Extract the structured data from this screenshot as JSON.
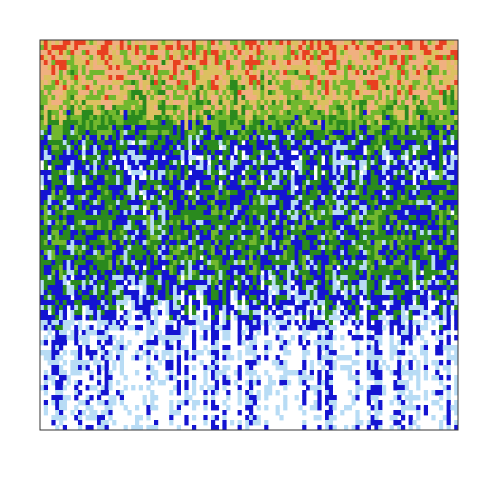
{
  "chart_data": {
    "type": "heatmap",
    "title": "",
    "xlabel": "",
    "ylabel": "",
    "axes_visible": false,
    "colorbar": false,
    "grid": false,
    "colormap": [
      "#ffffff",
      "#b8dcf5",
      "#1414d2",
      "#2a8a1e",
      "#72b82e",
      "#dcc060",
      "#f0b080",
      "#e84020"
    ],
    "value_range": [
      0,
      1
    ],
    "row_order": "top-to-bottom",
    "row_profile": [
      0.74,
      0.7,
      0.66,
      0.6,
      0.52,
      0.38,
      0.24,
      0.18,
      0.22,
      0.25,
      0.28,
      0.3,
      0.3,
      0.28,
      0.24,
      0.2,
      0.16,
      0.1,
      0.08,
      0.06,
      0.05,
      0.05,
      0.04,
      0.04
    ],
    "bands": [
      {
        "rows": [
          0,
          2
        ],
        "description_color": "orange-yellow"
      },
      {
        "rows": [
          2,
          6
        ],
        "description_color": "green"
      },
      {
        "rows": [
          6,
          18
        ],
        "description_color": "blue-green"
      },
      {
        "rows": [
          18,
          24
        ],
        "description_color": "light-blue"
      }
    ]
  }
}
